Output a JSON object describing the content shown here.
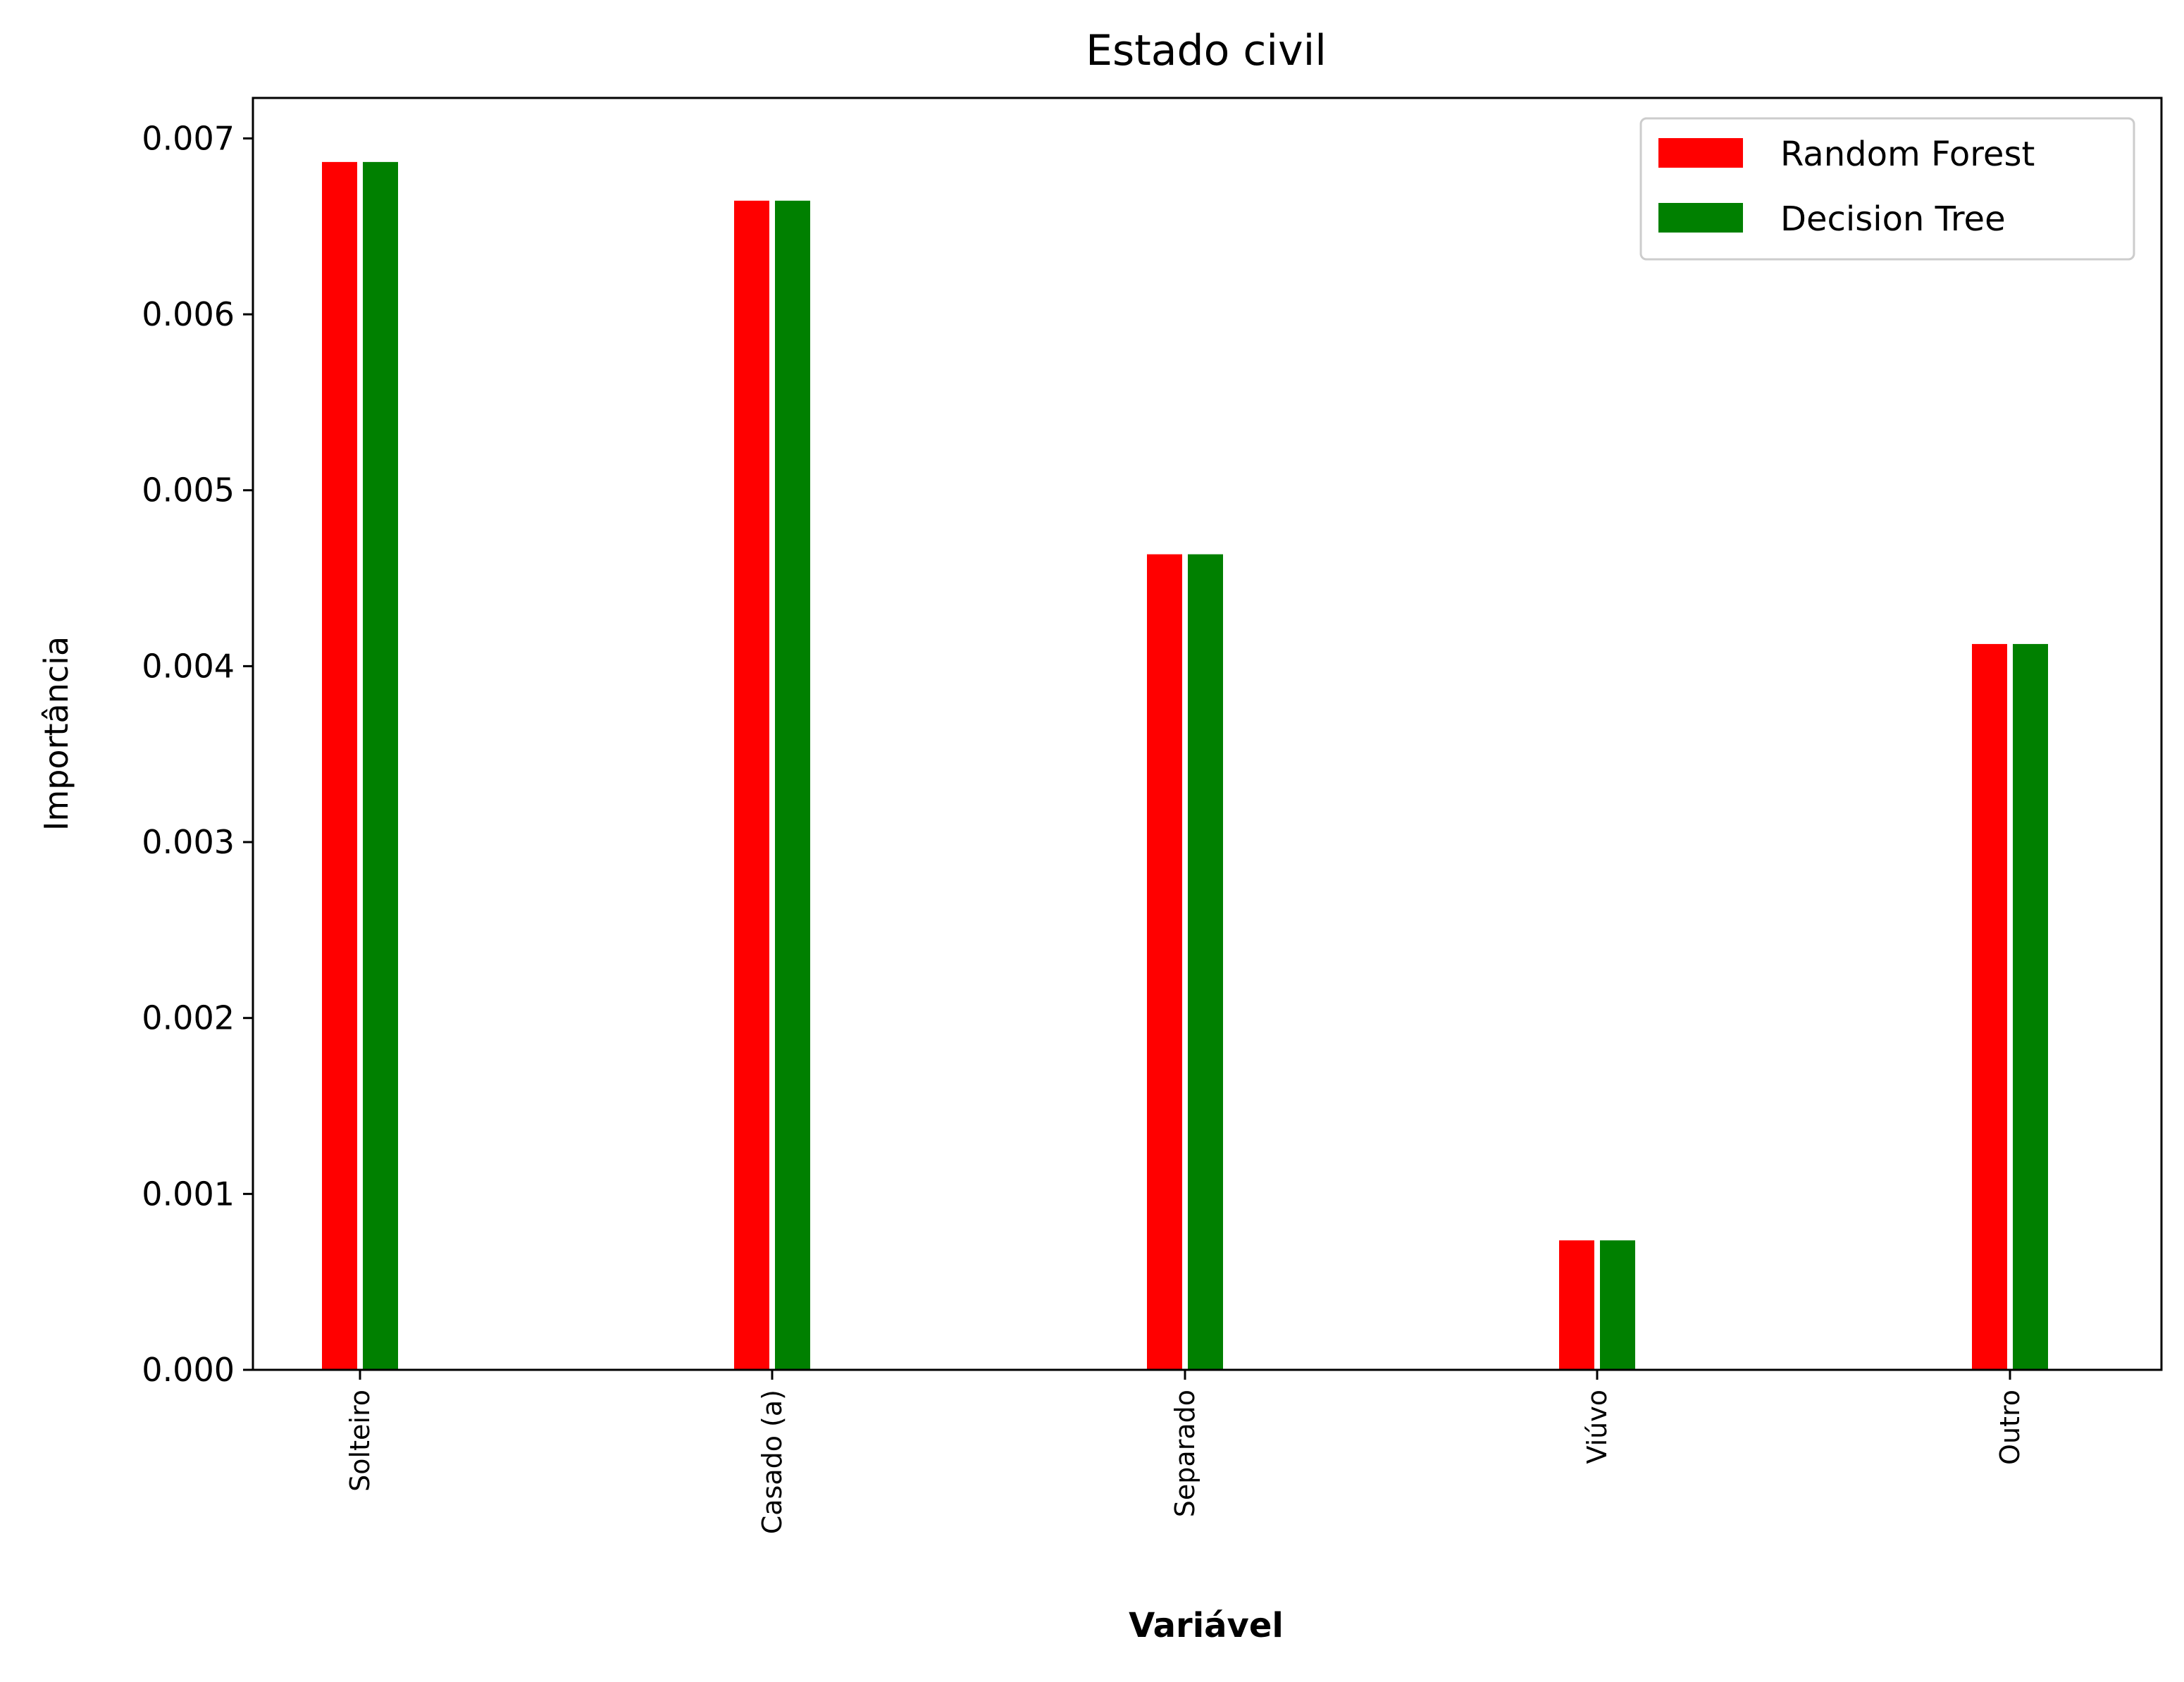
{
  "chart_data": {
    "type": "bar",
    "title": "Estado civil",
    "xlabel": "Variável",
    "ylabel": "Importância",
    "categories": [
      "Solteiro",
      "Casado (a)",
      "Separado",
      "Viúvo",
      "Outro"
    ],
    "series": [
      {
        "name": "Random Forest",
        "color": "#ff0000",
        "values": [
          0.00687,
          0.00665,
          0.00464,
          0.00074,
          0.00413
        ]
      },
      {
        "name": "Decision Tree",
        "color": "#008000",
        "values": [
          0.00687,
          0.00665,
          0.00464,
          0.00074,
          0.00413
        ]
      }
    ],
    "ylim": [
      0,
      0.00723
    ],
    "yticks": [
      "0.000",
      "0.001",
      "0.002",
      "0.003",
      "0.004",
      "0.005",
      "0.006",
      "0.007"
    ],
    "grid": false,
    "legend_position": "top-right"
  }
}
